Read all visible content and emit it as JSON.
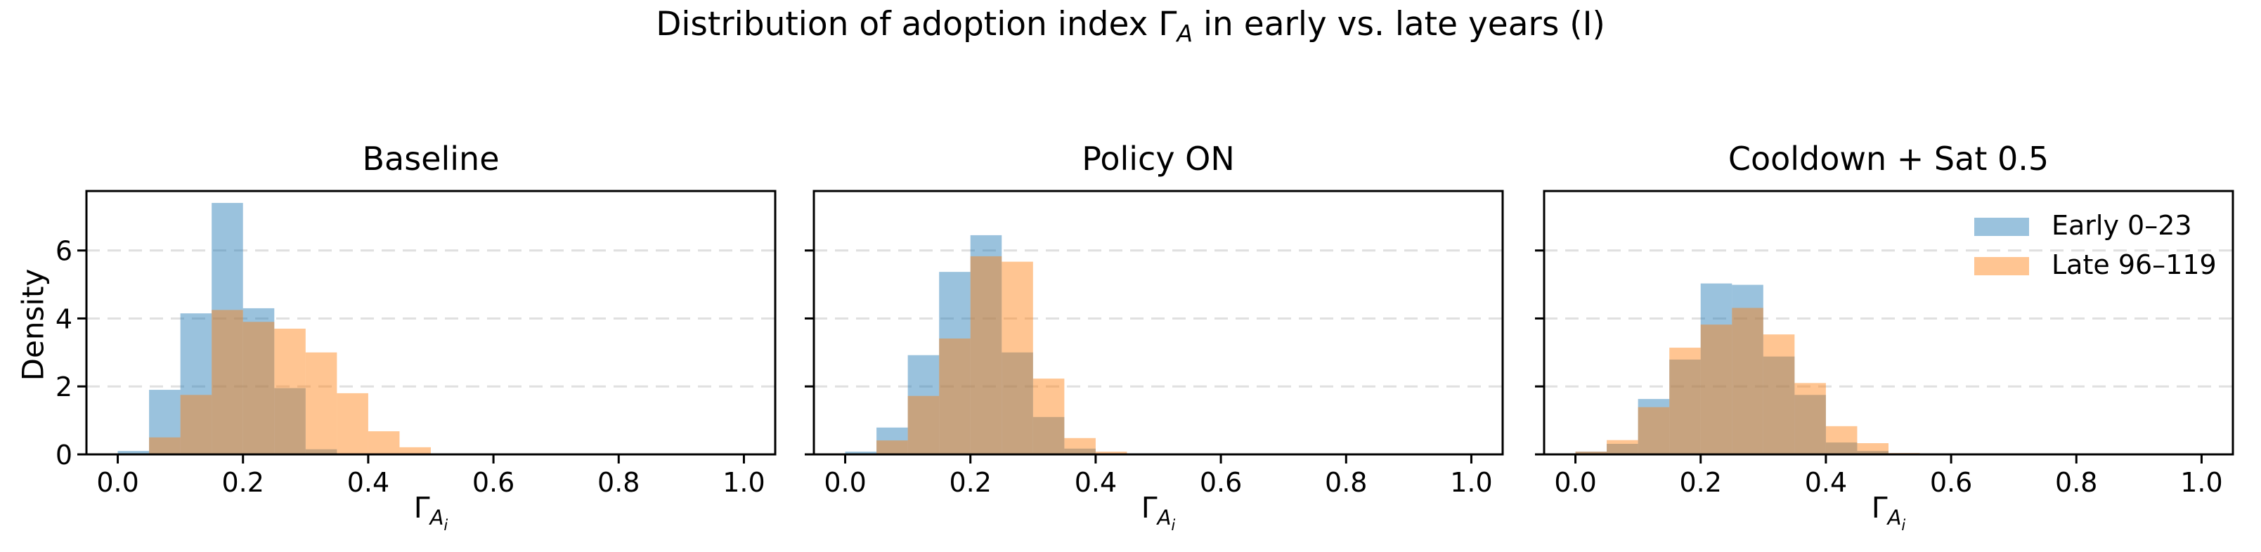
{
  "figure": {
    "suptitle": {
      "pre": "Distribution of adoption index ",
      "gamma": "Γ",
      "sub": "A",
      "post": " in early vs. late years (I)"
    },
    "ylabel": "Density",
    "xlabel": {
      "gamma": "Γ",
      "sub": "A",
      "subsub": "i"
    },
    "colors": {
      "early_fill": "#1f77b4",
      "late_fill": "#ff7f0e",
      "fill_alpha": 0.45,
      "grid": "#e0e0e0",
      "spine": "#000000",
      "text": "#000000",
      "background": "#ffffff"
    },
    "legend": {
      "position": "upper right of third subplot",
      "items": [
        {
          "label": "Early 0–23",
          "color_key": "early_fill"
        },
        {
          "label": "Late 96–119",
          "color_key": "late_fill"
        }
      ]
    }
  },
  "chart_data": [
    {
      "type": "histogram-overlay",
      "title": "Baseline",
      "xlabel": "Γ_{A_i}",
      "ylabel": "Density",
      "bin_start": 0.0,
      "bin_width": 0.05,
      "xlim": [
        -0.05,
        1.05
      ],
      "ylim": [
        0,
        7.75
      ],
      "xticks": [
        0.0,
        0.2,
        0.4,
        0.6,
        0.8,
        1.0
      ],
      "xtick_labels": [
        "0.0",
        "0.2",
        "0.4",
        "0.6",
        "0.8",
        "1.0"
      ],
      "yticks": [
        0,
        2,
        4,
        6
      ],
      "ytick_labels": [
        "0",
        "2",
        "4",
        "6"
      ],
      "grid": "horizontal-dashed",
      "series": [
        {
          "name": "Early 0–23",
          "values": [
            0.1,
            1.9,
            4.15,
            7.4,
            4.3,
            1.95,
            0.15,
            0,
            0,
            0,
            0
          ]
        },
        {
          "name": "Late 96–119",
          "values": [
            0,
            0.5,
            1.75,
            4.25,
            3.9,
            3.7,
            3.0,
            1.8,
            0.68,
            0.21,
            0
          ]
        }
      ]
    },
    {
      "type": "histogram-overlay",
      "title": "Policy ON",
      "xlabel": "Γ_{A_i}",
      "ylabel": "",
      "bin_start": 0.0,
      "bin_width": 0.05,
      "xlim": [
        -0.05,
        1.05
      ],
      "ylim": [
        0,
        7.75
      ],
      "xticks": [
        0.0,
        0.2,
        0.4,
        0.6,
        0.8,
        1.0
      ],
      "xtick_labels": [
        "0.0",
        "0.2",
        "0.4",
        "0.6",
        "0.8",
        "1.0"
      ],
      "yticks": [
        0,
        2,
        4,
        6
      ],
      "ytick_labels": [
        "0",
        "2",
        "4",
        "6"
      ],
      "grid": "horizontal-dashed",
      "series": [
        {
          "name": "Early 0–23",
          "values": [
            0.08,
            0.79,
            2.92,
            5.37,
            6.45,
            3.0,
            1.1,
            0.17,
            0,
            0,
            0
          ]
        },
        {
          "name": "Late 96–119",
          "values": [
            0,
            0.41,
            1.72,
            3.41,
            5.83,
            5.67,
            2.23,
            0.48,
            0.08,
            0,
            0
          ]
        }
      ]
    },
    {
      "type": "histogram-overlay",
      "title": "Cooldown + Sat 0.5",
      "xlabel": "Γ_{A_i}",
      "ylabel": "",
      "bin_start": 0.0,
      "bin_width": 0.05,
      "xlim": [
        -0.05,
        1.05
      ],
      "ylim": [
        0,
        7.75
      ],
      "xticks": [
        0.0,
        0.2,
        0.4,
        0.6,
        0.8,
        1.0
      ],
      "xtick_labels": [
        "0.0",
        "0.2",
        "0.4",
        "0.6",
        "0.8",
        "1.0"
      ],
      "yticks": [
        0,
        2,
        4,
        6
      ],
      "ytick_labels": [
        "0",
        "2",
        "4",
        "6"
      ],
      "grid": "horizontal-dashed",
      "show_legend": true,
      "series": [
        {
          "name": "Early 0–23",
          "values": [
            0.08,
            0.31,
            1.63,
            2.79,
            5.03,
            4.99,
            2.88,
            1.75,
            0.35,
            0.1,
            0
          ]
        },
        {
          "name": "Late 96–119",
          "values": [
            0.08,
            0.42,
            1.39,
            3.14,
            3.82,
            4.31,
            3.53,
            2.1,
            0.83,
            0.33,
            0.04
          ]
        }
      ]
    }
  ]
}
